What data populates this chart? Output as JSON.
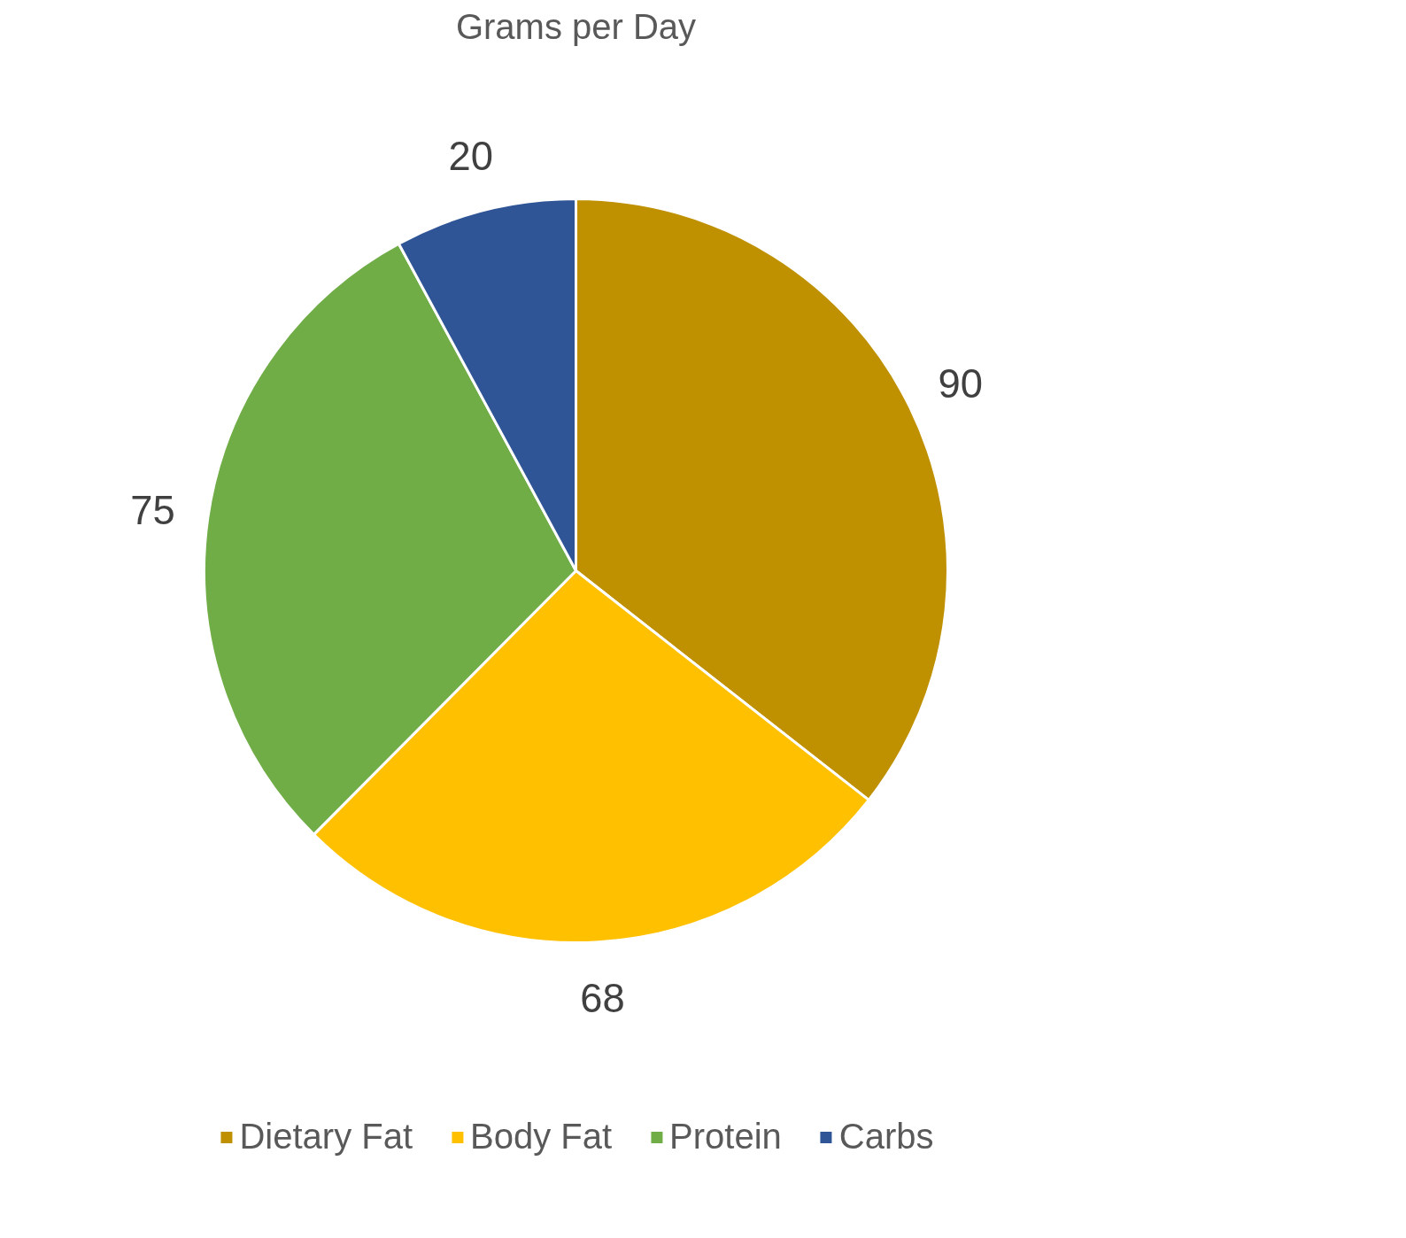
{
  "chart_data": {
    "type": "pie",
    "title": "Grams per Day",
    "categories": [
      "Dietary Fat",
      "Body Fat",
      "Protein",
      "Carbs"
    ],
    "values": [
      90,
      68,
      75,
      20
    ],
    "colors": [
      "#bf9000",
      "#ffc000",
      "#70ad47",
      "#2f5597"
    ],
    "data_labels": true,
    "legend": "bottom"
  }
}
